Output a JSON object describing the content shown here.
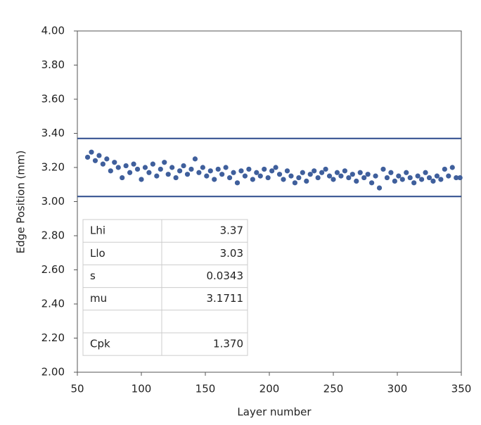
{
  "chart_data": {
    "type": "scatter",
    "xlabel": "Layer number",
    "ylabel": "Edge Position (mm)",
    "x": [
      58,
      61,
      64,
      67,
      70,
      73,
      76,
      79,
      82,
      85,
      88,
      91,
      94,
      97,
      100,
      103,
      106,
      109,
      112,
      115,
      118,
      121,
      124,
      127,
      130,
      133,
      136,
      139,
      142,
      145,
      148,
      151,
      154,
      157,
      160,
      163,
      166,
      169,
      172,
      175,
      178,
      181,
      184,
      187,
      190,
      193,
      196,
      199,
      202,
      205,
      208,
      211,
      214,
      217,
      220,
      223,
      226,
      229,
      232,
      235,
      238,
      241,
      244,
      247,
      250,
      253,
      256,
      259,
      262,
      265,
      268,
      271,
      274,
      277,
      280,
      283,
      286,
      289,
      292,
      295,
      298,
      301,
      304,
      307,
      310,
      313,
      316,
      319,
      322,
      325,
      328,
      331,
      334,
      337,
      340,
      343,
      346,
      349
    ],
    "series": [
      {
        "color": "#3f5f9c",
        "values": [
          3.26,
          3.29,
          3.24,
          3.27,
          3.22,
          3.25,
          3.18,
          3.23,
          3.2,
          3.14,
          3.21,
          3.17,
          3.22,
          3.19,
          3.13,
          3.2,
          3.17,
          3.22,
          3.15,
          3.19,
          3.23,
          3.16,
          3.2,
          3.14,
          3.18,
          3.21,
          3.16,
          3.19,
          3.25,
          3.17,
          3.2,
          3.15,
          3.18,
          3.13,
          3.19,
          3.16,
          3.2,
          3.14,
          3.17,
          3.11,
          3.18,
          3.15,
          3.19,
          3.13,
          3.17,
          3.15,
          3.19,
          3.14,
          3.18,
          3.2,
          3.16,
          3.13,
          3.18,
          3.15,
          3.11,
          3.14,
          3.17,
          3.12,
          3.16,
          3.18,
          3.14,
          3.17,
          3.19,
          3.15,
          3.13,
          3.17,
          3.15,
          3.18,
          3.14,
          3.16,
          3.12,
          3.17,
          3.14,
          3.16,
          3.11,
          3.15,
          3.08,
          3.19,
          3.14,
          3.17,
          3.12,
          3.15,
          3.13,
          3.17,
          3.14,
          3.11,
          3.15,
          3.13,
          3.17,
          3.14,
          3.12,
          3.15,
          3.13,
          3.19,
          3.15,
          3.2,
          3.14,
          3.14
        ]
      }
    ],
    "hlines": [
      3.37,
      3.03
    ],
    "hline_color": "#2c4a8c",
    "xlim": [
      50,
      350
    ],
    "xticks": [
      50,
      100,
      150,
      200,
      250,
      300,
      350
    ],
    "ylim": [
      2,
      4
    ],
    "yticks": [
      {
        "value": 2,
        "label": "2.00"
      },
      {
        "value": 2.2,
        "label": "2.20"
      },
      {
        "value": 2.4,
        "label": "2.40"
      },
      {
        "value": 2.6,
        "label": "2.60"
      },
      {
        "value": 2.8,
        "label": "2.80"
      },
      {
        "value": 3,
        "label": "3.00"
      },
      {
        "value": 3.2,
        "label": "3.20"
      },
      {
        "value": 3.4,
        "label": "3.40"
      },
      {
        "value": 3.6,
        "label": "3.60"
      },
      {
        "value": 3.8,
        "label": "3.80"
      },
      {
        "value": 4,
        "label": "4.00"
      }
    ],
    "table": [
      [
        "Lhi",
        "3.37"
      ],
      [
        "Llo",
        "3.03"
      ],
      [
        "s",
        "0.0343"
      ],
      [
        "mu",
        "3.1711"
      ],
      null,
      [
        "Cpk",
        "1.370"
      ]
    ]
  }
}
